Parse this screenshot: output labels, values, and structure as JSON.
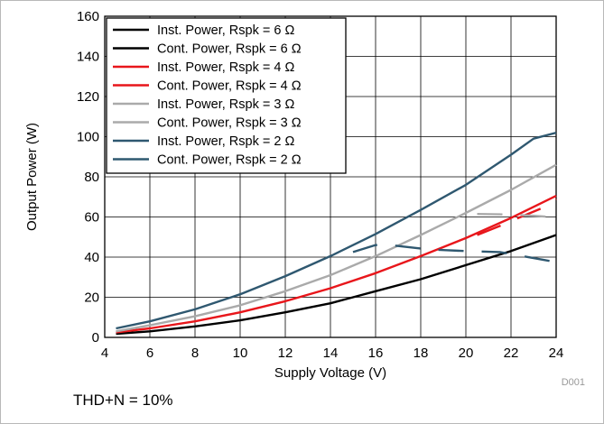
{
  "chart_data": {
    "type": "line",
    "title": "",
    "xlabel": "Supply Voltage (V)",
    "ylabel": "Output Power (W)",
    "xlim": [
      4,
      24
    ],
    "ylim": [
      0,
      160
    ],
    "xticks": [
      4,
      6,
      8,
      10,
      12,
      14,
      16,
      18,
      20,
      22,
      24
    ],
    "yticks": [
      0,
      20,
      40,
      60,
      80,
      100,
      120,
      140,
      160
    ],
    "grid": true,
    "legend_position": "top-left",
    "figure_id": "D001",
    "series": [
      {
        "name": "Inst. Power, Rspk = 6 Ω",
        "color": "#000000",
        "style": "solid",
        "x": [
          4.5,
          6,
          8,
          10,
          12,
          14,
          16,
          18,
          20,
          22,
          24
        ],
        "y": [
          1.8,
          3,
          5.5,
          8.5,
          12.5,
          17,
          23,
          29,
          36,
          43,
          51
        ]
      },
      {
        "name": "Cont. Power, Rspk = 6 Ω",
        "color": "#000000",
        "style": "dashed",
        "x": [],
        "y": []
      },
      {
        "name": "Inst. Power, Rspk = 4 Ω",
        "color": "#e8161b",
        "style": "solid",
        "x": [
          4.5,
          6,
          8,
          10,
          12,
          14,
          16,
          18,
          20,
          22,
          24
        ],
        "y": [
          2.5,
          4.5,
          8,
          12.5,
          18,
          24.5,
          32,
          40.5,
          49.5,
          59.5,
          70.5
        ]
      },
      {
        "name": "Cont. Power, Rspk = 4 Ω",
        "color": "#e8161b",
        "style": "dashed",
        "x": [
          20.5,
          21.5,
          22,
          23.5,
          24
        ],
        "y": [
          51,
          55.5,
          58,
          65,
          69
        ]
      },
      {
        "name": "Inst. Power, Rspk = 3 Ω",
        "color": "#aaaaaa",
        "style": "solid",
        "x": [
          4.5,
          6,
          8,
          10,
          12,
          14,
          16,
          18,
          20,
          22,
          24
        ],
        "y": [
          3,
          6,
          10.5,
          16,
          23,
          31,
          40.5,
          51,
          62,
          73.5,
          86
        ]
      },
      {
        "name": "Cont. Power, Rspk = 3 Ω",
        "color": "#aaaaaa",
        "style": "dashed",
        "x": [
          20.5,
          21.5,
          22,
          23,
          23.5,
          24
        ],
        "y": [
          61.5,
          61.3,
          61.2,
          60.6,
          60.2,
          59.5
        ]
      },
      {
        "name": "Inst. Power, Rspk = 2 Ω",
        "color": "#2f5870",
        "style": "solid",
        "x": [
          4.5,
          6,
          8,
          10,
          12,
          14,
          16,
          18,
          20,
          22,
          23,
          24
        ],
        "y": [
          4.5,
          8,
          14,
          21.5,
          30.5,
          40.5,
          51.5,
          63.5,
          76,
          91,
          99,
          102
        ]
      },
      {
        "name": "Cont. Power, Rspk = 2 Ω",
        "color": "#2f5870",
        "style": "dashed",
        "x": [
          15,
          16,
          16.8,
          18.2,
          19,
          20,
          21.5,
          22,
          23,
          23.5,
          24
        ],
        "y": [
          42.5,
          46,
          45.8,
          44,
          43.5,
          43,
          42.5,
          41.5,
          39.5,
          38.5,
          37.5
        ]
      }
    ]
  },
  "annotations": {
    "figure_id": "D001",
    "condition": "THD+N = 10%"
  }
}
